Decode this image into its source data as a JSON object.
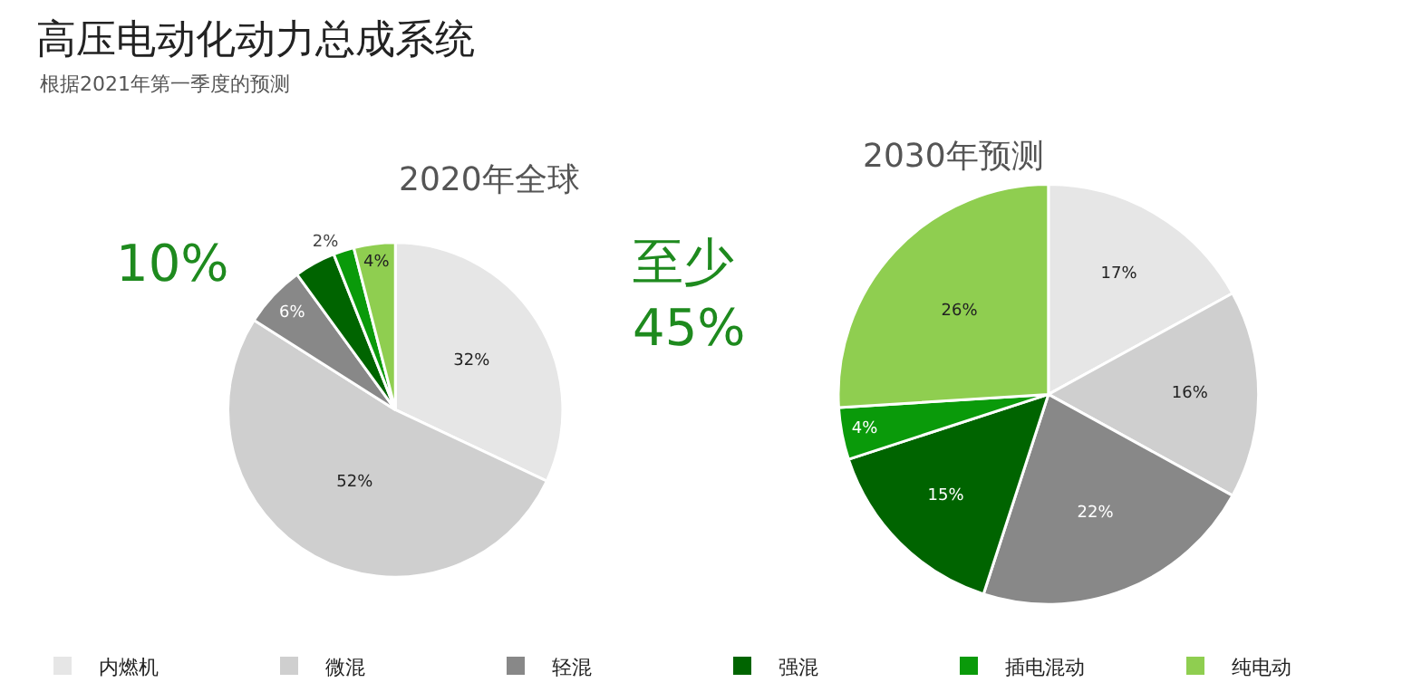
{
  "chart_data": [
    {
      "type": "pie",
      "title": "高压电动化动力总成系统",
      "subtitle": "根据2021年第一季度的预测",
      "legend": "bottom",
      "categories": [
        "内燃机",
        "微混",
        "轻混",
        "强混",
        "插电混动",
        "纯电动"
      ],
      "values": [
        32,
        52,
        6,
        4,
        2,
        4
      ],
      "colors": [
        "#e6e6e6",
        "#cfcfcf",
        "#888888",
        "#006400",
        "#0a9a0a",
        "#8fce50"
      ],
      "value_labels": [
        "32%",
        "52%",
        "6%",
        null,
        "2%",
        "4%"
      ],
      "annotations": [
        "2020年全球",
        "10%"
      ]
    },
    {
      "type": "pie",
      "categories": [
        null,
        null,
        null,
        null,
        null,
        null
      ],
      "values": [
        17,
        16,
        22,
        15,
        4,
        26
      ],
      "colors": [
        "#e6e6e6",
        "#cfcfcf",
        "#888888",
        "#006400",
        "#0a9a0a",
        "#8fce50"
      ],
      "value_labels": [
        "17%",
        "16%",
        "22%",
        "15%",
        "4%",
        "26%"
      ],
      "annotations": [
        "2030年预测",
        "至少\n45%"
      ]
    }
  ]
}
